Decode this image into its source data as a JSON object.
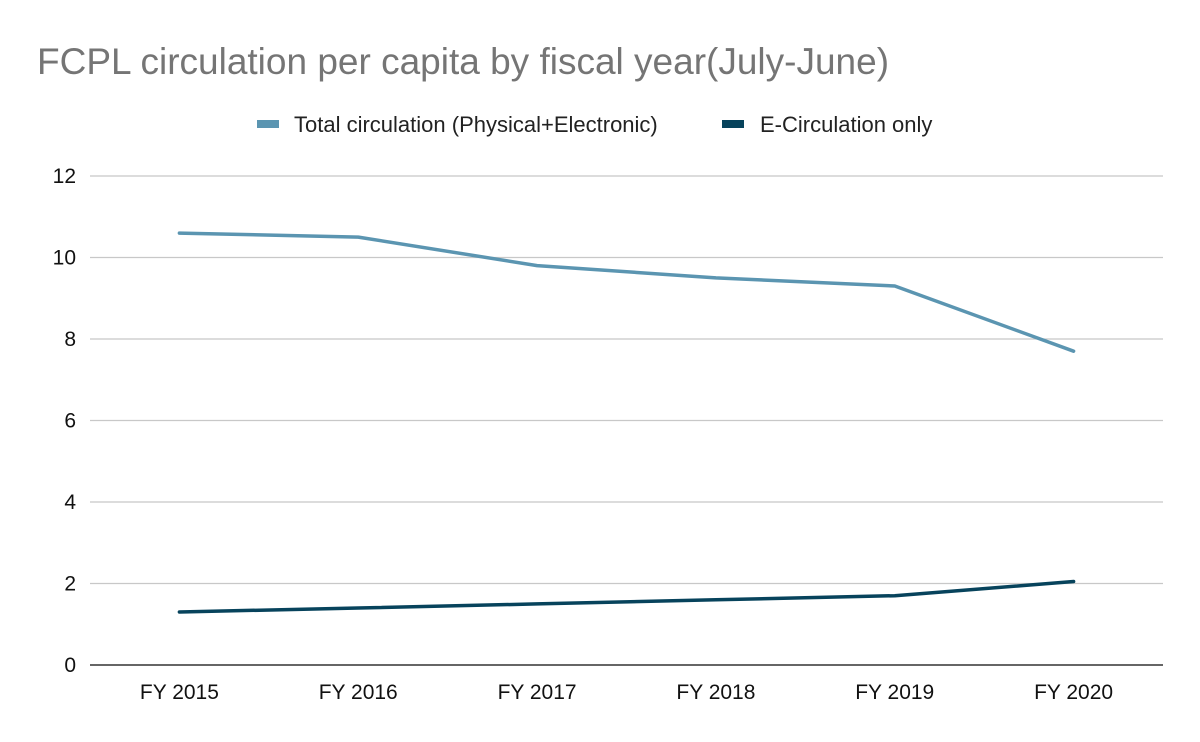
{
  "chart_data": {
    "type": "line",
    "title": "FCPL circulation per capita by fiscal year(July-June)",
    "xlabel": "",
    "ylabel": "",
    "categories": [
      "FY 2015",
      "FY 2016",
      "FY 2017",
      "FY 2018",
      "FY 2019",
      "FY 2020"
    ],
    "ylim": [
      0,
      12
    ],
    "yticks": [
      0,
      2,
      4,
      6,
      8,
      10,
      12
    ],
    "ytick_labels": [
      "0",
      "2",
      "4",
      "6",
      "8",
      "10",
      "12"
    ],
    "grid": true,
    "legend_position": "top-center",
    "series": [
      {
        "name": "Total circulation (Physical+Electronic)",
        "color": "#5b95b1",
        "values": [
          10.6,
          10.5,
          9.8,
          9.5,
          9.3,
          7.7
        ]
      },
      {
        "name": "E-Circulation only",
        "color": "#07435c",
        "values": [
          1.3,
          1.4,
          1.5,
          1.6,
          1.7,
          2.05
        ]
      }
    ]
  }
}
